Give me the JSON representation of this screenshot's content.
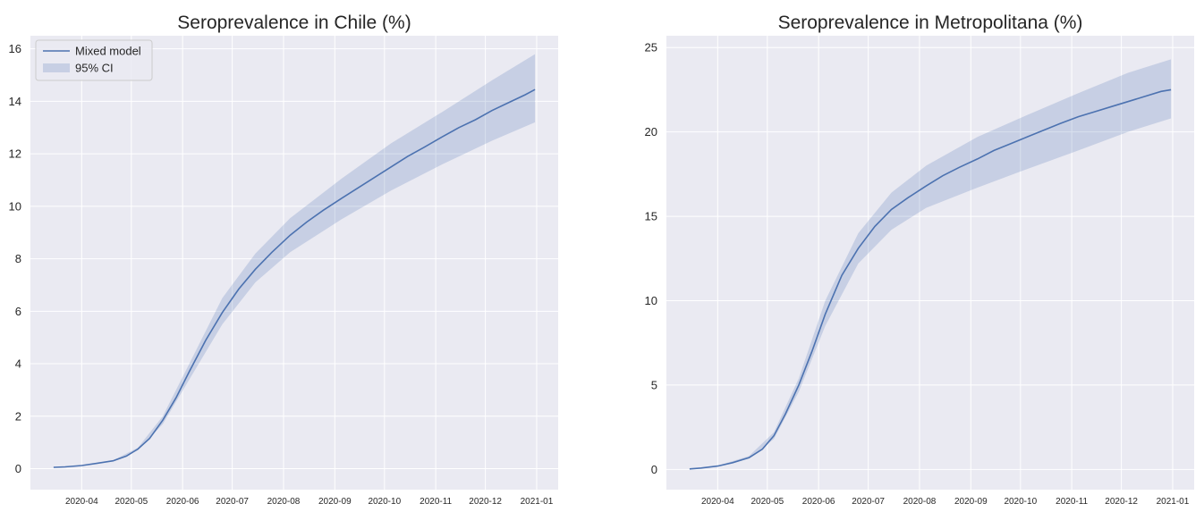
{
  "figure": {
    "colors": {
      "background": "#eaeaf2",
      "grid": "#ffffff",
      "line": "#4c72b0",
      "band": "#4c72b0",
      "text": "#262626"
    }
  },
  "chart_data": [
    {
      "type": "line",
      "title": "Seroprevalence in Chile (%)",
      "xlabel": "",
      "ylabel": "",
      "x_ticks": [
        "2020-04",
        "2020-05",
        "2020-06",
        "2020-07",
        "2020-08",
        "2020-09",
        "2020-10",
        "2020-11",
        "2020-12",
        "2021-01"
      ],
      "y_ticks": [
        "0",
        "2",
        "4",
        "6",
        "8",
        "10",
        "12",
        "14",
        "16"
      ],
      "xlim": [
        "2020-03-01",
        "2021-01-14"
      ],
      "ylim": [
        -0.8,
        16.5
      ],
      "grid": true,
      "legend": {
        "position": "top-left",
        "entries": [
          "Mixed model",
          "95% CI"
        ]
      },
      "series": [
        {
          "name": "Mixed model",
          "kind": "line",
          "x": [
            "2020-03-15",
            "2020-03-22",
            "2020-04-01",
            "2020-04-10",
            "2020-04-20",
            "2020-04-28",
            "2020-05-05",
            "2020-05-12",
            "2020-05-20",
            "2020-05-28",
            "2020-06-05",
            "2020-06-15",
            "2020-06-25",
            "2020-07-05",
            "2020-07-15",
            "2020-07-25",
            "2020-08-05",
            "2020-08-15",
            "2020-08-25",
            "2020-09-05",
            "2020-09-15",
            "2020-09-25",
            "2020-10-05",
            "2020-10-15",
            "2020-10-25",
            "2020-11-05",
            "2020-11-15",
            "2020-11-25",
            "2020-12-05",
            "2020-12-15",
            "2020-12-25",
            "2020-12-31"
          ],
          "y": [
            0.05,
            0.07,
            0.12,
            0.2,
            0.3,
            0.48,
            0.75,
            1.15,
            1.85,
            2.7,
            3.7,
            4.9,
            5.95,
            6.85,
            7.6,
            8.25,
            8.9,
            9.4,
            9.85,
            10.3,
            10.7,
            11.1,
            11.5,
            11.9,
            12.25,
            12.65,
            13.0,
            13.3,
            13.65,
            13.95,
            14.25,
            14.45
          ]
        },
        {
          "name": "95% CI",
          "kind": "band",
          "x": [
            "2020-03-15",
            "2020-04-01",
            "2020-04-20",
            "2020-05-05",
            "2020-05-20",
            "2020-06-05",
            "2020-06-25",
            "2020-07-15",
            "2020-08-05",
            "2020-09-05",
            "2020-10-05",
            "2020-11-05",
            "2020-12-05",
            "2020-12-31"
          ],
          "lower": [
            0.05,
            0.12,
            0.28,
            0.7,
            1.7,
            3.4,
            5.5,
            7.1,
            8.25,
            9.5,
            10.6,
            11.6,
            12.5,
            13.2
          ],
          "upper": [
            0.06,
            0.13,
            0.32,
            0.8,
            2.0,
            4.0,
            6.5,
            8.2,
            9.55,
            11.05,
            12.4,
            13.6,
            14.8,
            15.8
          ]
        }
      ]
    },
    {
      "type": "line",
      "title": "Seroprevalence in Metropolitana (%)",
      "xlabel": "",
      "ylabel": "",
      "x_ticks": [
        "2020-04",
        "2020-05",
        "2020-06",
        "2020-07",
        "2020-08",
        "2020-09",
        "2020-10",
        "2020-11",
        "2020-12",
        "2021-01"
      ],
      "y_ticks": [
        "0",
        "5",
        "10",
        "15",
        "20",
        "25"
      ],
      "xlim": [
        "2020-03-01",
        "2021-01-14"
      ],
      "ylim": [
        -1.2,
        25.7
      ],
      "grid": true,
      "series": [
        {
          "name": "Mixed model",
          "kind": "line",
          "x": [
            "2020-03-15",
            "2020-03-22",
            "2020-04-01",
            "2020-04-10",
            "2020-04-20",
            "2020-04-28",
            "2020-05-05",
            "2020-05-12",
            "2020-05-20",
            "2020-05-28",
            "2020-06-05",
            "2020-06-15",
            "2020-06-25",
            "2020-07-05",
            "2020-07-15",
            "2020-07-25",
            "2020-08-05",
            "2020-08-15",
            "2020-08-25",
            "2020-09-05",
            "2020-09-15",
            "2020-09-25",
            "2020-10-05",
            "2020-10-15",
            "2020-10-25",
            "2020-11-05",
            "2020-11-15",
            "2020-11-25",
            "2020-12-05",
            "2020-12-15",
            "2020-12-25",
            "2020-12-31"
          ],
          "y": [
            0.03,
            0.08,
            0.2,
            0.4,
            0.7,
            1.2,
            2.0,
            3.3,
            5.0,
            7.0,
            9.2,
            11.5,
            13.1,
            14.4,
            15.4,
            16.1,
            16.8,
            17.4,
            17.9,
            18.4,
            18.9,
            19.3,
            19.7,
            20.1,
            20.5,
            20.9,
            21.2,
            21.5,
            21.8,
            22.1,
            22.4,
            22.5
          ]
        },
        {
          "name": "95% CI",
          "kind": "band",
          "x": [
            "2020-03-15",
            "2020-04-01",
            "2020-04-20",
            "2020-05-05",
            "2020-05-20",
            "2020-06-05",
            "2020-06-25",
            "2020-07-15",
            "2020-08-05",
            "2020-09-05",
            "2020-10-05",
            "2020-11-05",
            "2020-12-05",
            "2020-12-31"
          ],
          "lower": [
            0.03,
            0.18,
            0.65,
            1.8,
            4.6,
            8.5,
            12.2,
            14.2,
            15.5,
            16.7,
            17.8,
            18.9,
            20.0,
            20.8
          ],
          "upper": [
            0.04,
            0.22,
            0.8,
            2.2,
            5.4,
            10.0,
            14.0,
            16.4,
            18.0,
            19.7,
            21.0,
            22.3,
            23.5,
            24.3
          ]
        }
      ]
    }
  ]
}
